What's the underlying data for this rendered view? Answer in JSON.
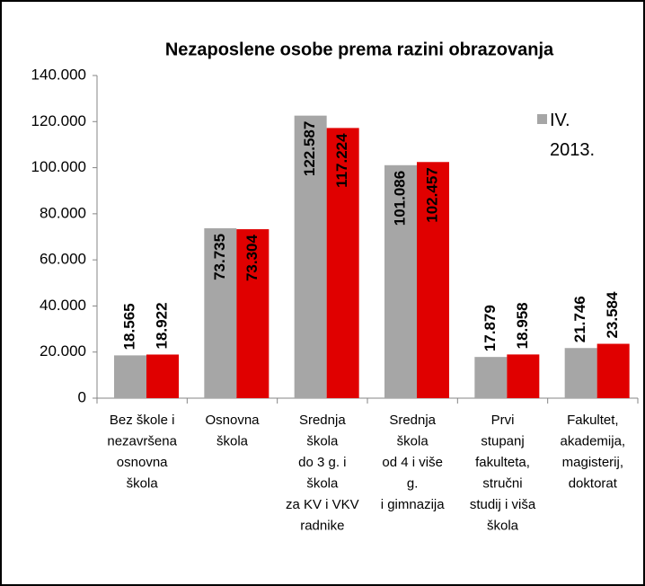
{
  "chart_data": {
    "type": "bar",
    "title": "Nezaposlene osobe prema razini obrazovanja",
    "categories": [
      [
        "Bez škole i",
        "nezavršena",
        "osnovna",
        "škola"
      ],
      [
        "Osnovna",
        "škola"
      ],
      [
        "Srednja",
        "škola",
        "do 3 g. i",
        "škola",
        "za KV i VKV",
        "radnike"
      ],
      [
        "Srednja",
        "škola",
        "od 4 i više",
        "g.",
        "i gimnazija"
      ],
      [
        "Prvi",
        "stupanj",
        "fakulteta,",
        "stručni",
        "studij i viša",
        "škola"
      ],
      [
        "Fakultet,",
        "akademija,",
        "magisterij,",
        "doktorat"
      ]
    ],
    "series": [
      {
        "name": "IV. 2013.",
        "color": "#a6a6a6",
        "values": [
          18565,
          73735,
          122587,
          101086,
          17879,
          21746
        ],
        "value_labels": [
          "18.565",
          "73.735",
          "122.587",
          "101.086",
          "17.879",
          "21.746"
        ]
      },
      {
        "color": "#e00000",
        "values": [
          18922,
          73304,
          117224,
          102457,
          18958,
          23584
        ],
        "value_labels": [
          "18.922",
          "73.304",
          "117.224",
          "102.457",
          "18.958",
          "23.584"
        ]
      }
    ],
    "ylim": [
      0,
      140000
    ],
    "yticks": [
      0,
      {
        "value": 20000,
        "label": "20.000"
      },
      {
        "value": 40000,
        "label": "40.000"
      },
      {
        "value": 60000,
        "label": "60.000"
      },
      {
        "value": 80000,
        "label": "80.000"
      },
      {
        "value": 100000,
        "label": "100.000"
      },
      {
        "value": 120000,
        "label": "120.000"
      },
      {
        "value": 140000,
        "label": "140.000"
      }
    ],
    "grid": false,
    "legend": "top-right"
  }
}
